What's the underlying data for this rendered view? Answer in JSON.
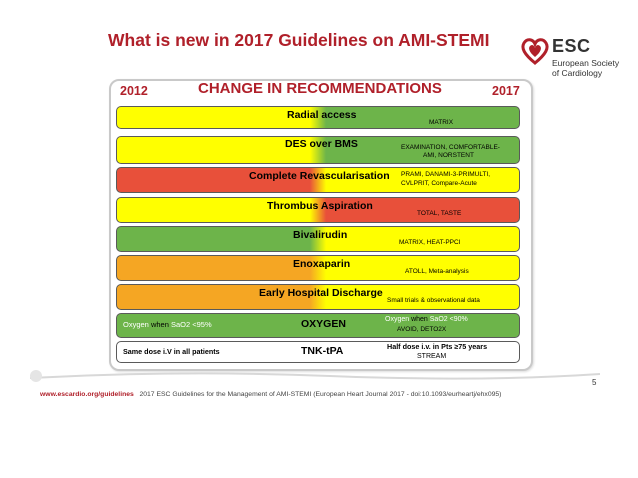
{
  "title": "What is new in 2017 Guidelines on AMI-STEMI",
  "logo": {
    "abbr": "ESC",
    "line1": "European Society",
    "line2": "of Cardiology"
  },
  "table": {
    "year_left": "2012",
    "year_right": "2017",
    "heading": "CHANGE IN RECOMMENDATIONS",
    "rows": [
      {
        "label": "Radial access",
        "note": "MATRIX"
      },
      {
        "label": "DES over BMS",
        "note1": "EXAMINATION, COMFORTABLE-",
        "note2": "AMI, NORSTENT"
      },
      {
        "label": "Complete Revascularisation",
        "note1": "PRAMI, DANAMI-3-PRIMULTI,",
        "note2": "CVLPRIT, Compare-Acute"
      },
      {
        "label": "Thrombus Aspiration",
        "note": "TOTAL, TASTE"
      },
      {
        "label": "Bivalirudin",
        "note": "MATRIX, HEAT-PPCI"
      },
      {
        "label": "Enoxaparin",
        "note": "ATOLL, Meta-analysis"
      },
      {
        "label": "Early Hospital Discharge",
        "note": "Small trials & observational data"
      },
      {
        "label": "OXYGEN",
        "left_a": "Oxygen ",
        "left_b": "when ",
        "left_c": "SaO2 <95%",
        "right_a": "Oxygen ",
        "right_b": "when ",
        "right_c": "SaO2 <90%",
        "right_note": "AVOID, DETO2X"
      },
      {
        "label": "TNK-tPA",
        "left": "Same dose i.V in all patients",
        "right1": "Half dose i.v. in Pts ≥75 years",
        "right2": "STREAM"
      }
    ]
  },
  "colors": {
    "yellow": "#ffff00",
    "green": "#6db44a",
    "red": "#e8503a",
    "orange": "#f5a623",
    "white": "#ffffff",
    "title_red": "#b0202a"
  },
  "page_number": "5",
  "footer": {
    "url": "www.escardio.org/guidelines",
    "citation": "2017 ESC Guidelines for the Management of AMI-STEMI (European Heart Journal 2017 - doi:10.1093/eurheartj/ehx095)"
  }
}
